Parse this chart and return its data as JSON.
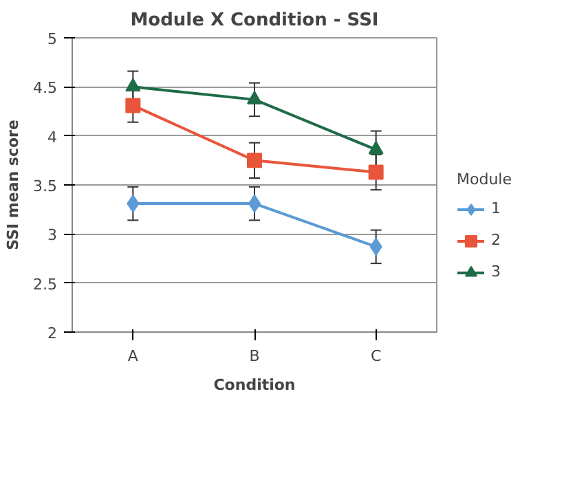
{
  "chart_data": {
    "type": "line",
    "title": "Module X Condition - SSI",
    "xlabel": "Condition",
    "ylabel": "SSI mean score",
    "legend_title": "Module",
    "categories": [
      "A",
      "B",
      "C"
    ],
    "series": [
      {
        "name": "1",
        "color": "#5b9bd5",
        "marker": "diamond",
        "values": [
          3.31,
          3.31,
          2.87
        ],
        "errors": [
          0.17,
          0.17,
          0.17
        ]
      },
      {
        "name": "2",
        "color": "#e8553a",
        "marker": "square",
        "values": [
          4.31,
          3.75,
          3.63
        ],
        "errors": [
          0.17,
          0.18,
          0.18
        ]
      },
      {
        "name": "3",
        "color": "#1e6b48",
        "marker": "triangle",
        "values": [
          4.5,
          4.37,
          3.86
        ],
        "errors": [
          0.16,
          0.17,
          0.19
        ]
      }
    ],
    "ylim": [
      2,
      5
    ],
    "yticks": [
      2,
      2.5,
      3,
      3.5,
      4,
      4.5,
      5
    ],
    "grid": "y",
    "legend": "right"
  }
}
